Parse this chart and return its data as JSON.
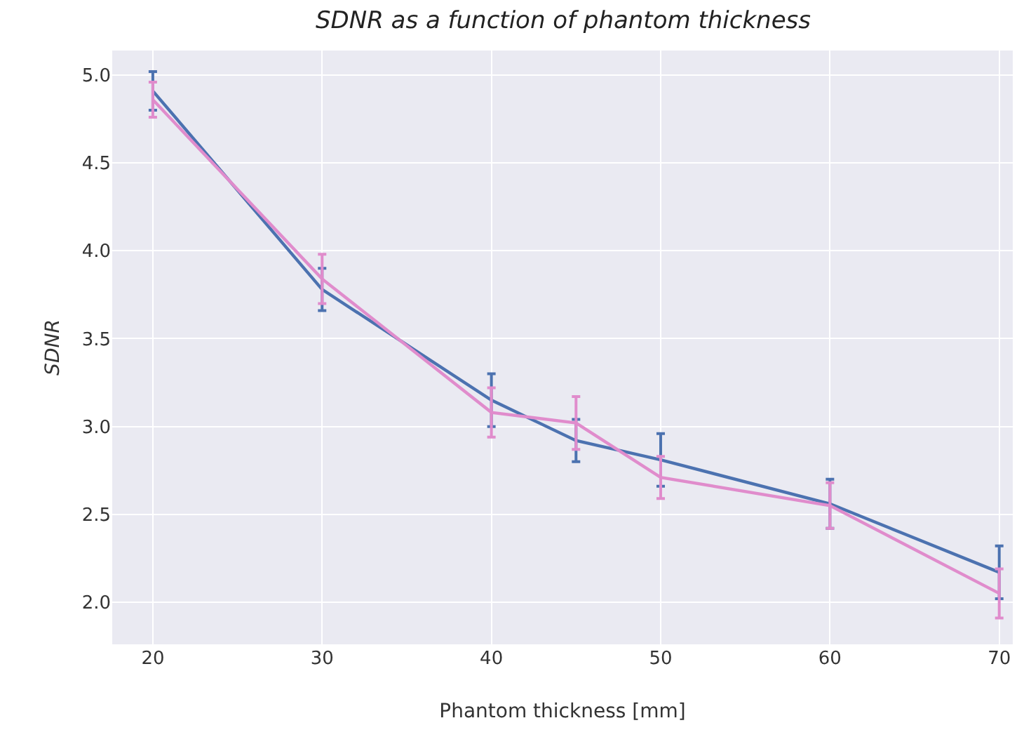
{
  "chart_data": {
    "type": "line",
    "title": "SDNR as a function of phantom thickness",
    "xlabel": "Phantom thickness [mm]",
    "ylabel": "SDNR",
    "x": [
      20,
      30,
      40,
      45,
      50,
      60,
      70
    ],
    "series": [
      {
        "color": "#4c72b0",
        "values": [
          4.91,
          3.78,
          3.15,
          2.92,
          2.81,
          2.56,
          2.17
        ],
        "errors": [
          0.11,
          0.12,
          0.15,
          0.12,
          0.15,
          0.14,
          0.15
        ]
      },
      {
        "color": "#e08ccc",
        "values": [
          4.86,
          3.84,
          3.08,
          3.02,
          2.71,
          2.55,
          2.05
        ],
        "errors": [
          0.1,
          0.14,
          0.14,
          0.15,
          0.12,
          0.13,
          0.14
        ]
      }
    ],
    "xlim": [
      17.6,
      70.8
    ],
    "xticks": [
      20,
      30,
      40,
      50,
      60,
      70
    ],
    "ylim": [
      1.76,
      5.14
    ],
    "yticks": [
      {
        "value": 2,
        "label": "2.0"
      },
      2.5,
      {
        "value": 3,
        "label": "3.0"
      },
      3.5,
      {
        "value": 4,
        "label": "4.0"
      },
      4.5,
      {
        "value": 5,
        "label": "5.0"
      }
    ],
    "grid": true,
    "marker": "none",
    "line_style": "solid"
  }
}
